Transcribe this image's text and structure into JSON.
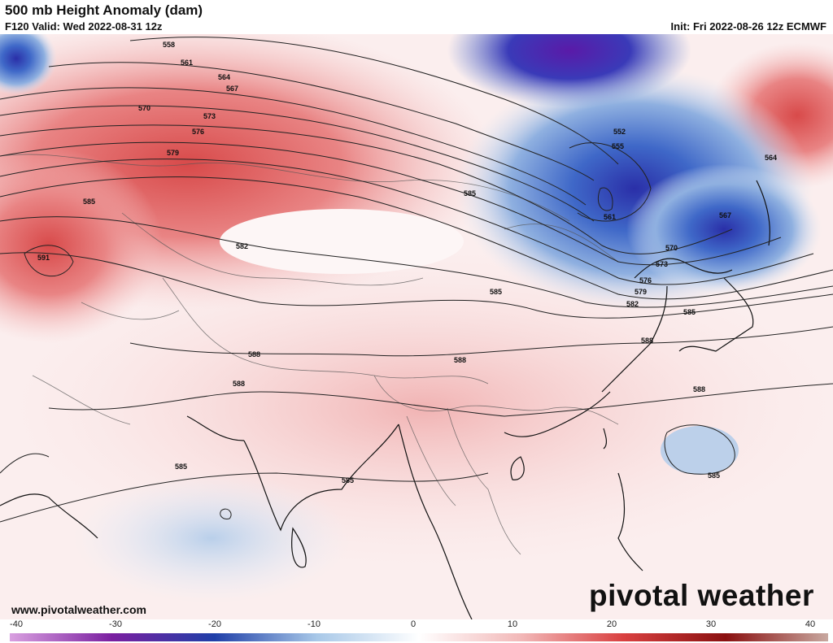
{
  "header": {
    "title": "500 mb Height Anomaly (dam)",
    "valid": "F120 Valid: Wed 2022-08-31 12z",
    "init": "Init: Fri 2022-08-26 12z ECMWF"
  },
  "map": {
    "region": "Asia",
    "contour_labels": [
      "558",
      "561",
      "564",
      "567",
      "570",
      "573",
      "576",
      "579",
      "582",
      "585",
      "588",
      "591",
      "552",
      "555",
      "561",
      "564",
      "567",
      "570",
      "573",
      "576",
      "579",
      "582",
      "585",
      "588",
      "585",
      "588",
      "588",
      "588",
      "585",
      "585",
      "585",
      "585"
    ]
  },
  "footer": {
    "website": "www.pivotalweather.com",
    "brand": "pivotal weather",
    "brand_icon": "sun-icon"
  },
  "colorbar": {
    "ticks": [
      "-40",
      "-30",
      "-20",
      "-10",
      "0",
      "10",
      "20",
      "30",
      "40"
    ],
    "min": -40,
    "max": 40,
    "colors": {
      "negative_far": "#d9a0e0",
      "negative_strong": "#7a1fa0",
      "negative_mid": "#1f3fa8",
      "negative_light": "#a8c8e8",
      "zero": "#ffffff",
      "positive_light": "#f2b8b8",
      "positive_mid": "#d94040",
      "positive_strong": "#8a1010",
      "positive_far": "#c8a8a0"
    }
  }
}
